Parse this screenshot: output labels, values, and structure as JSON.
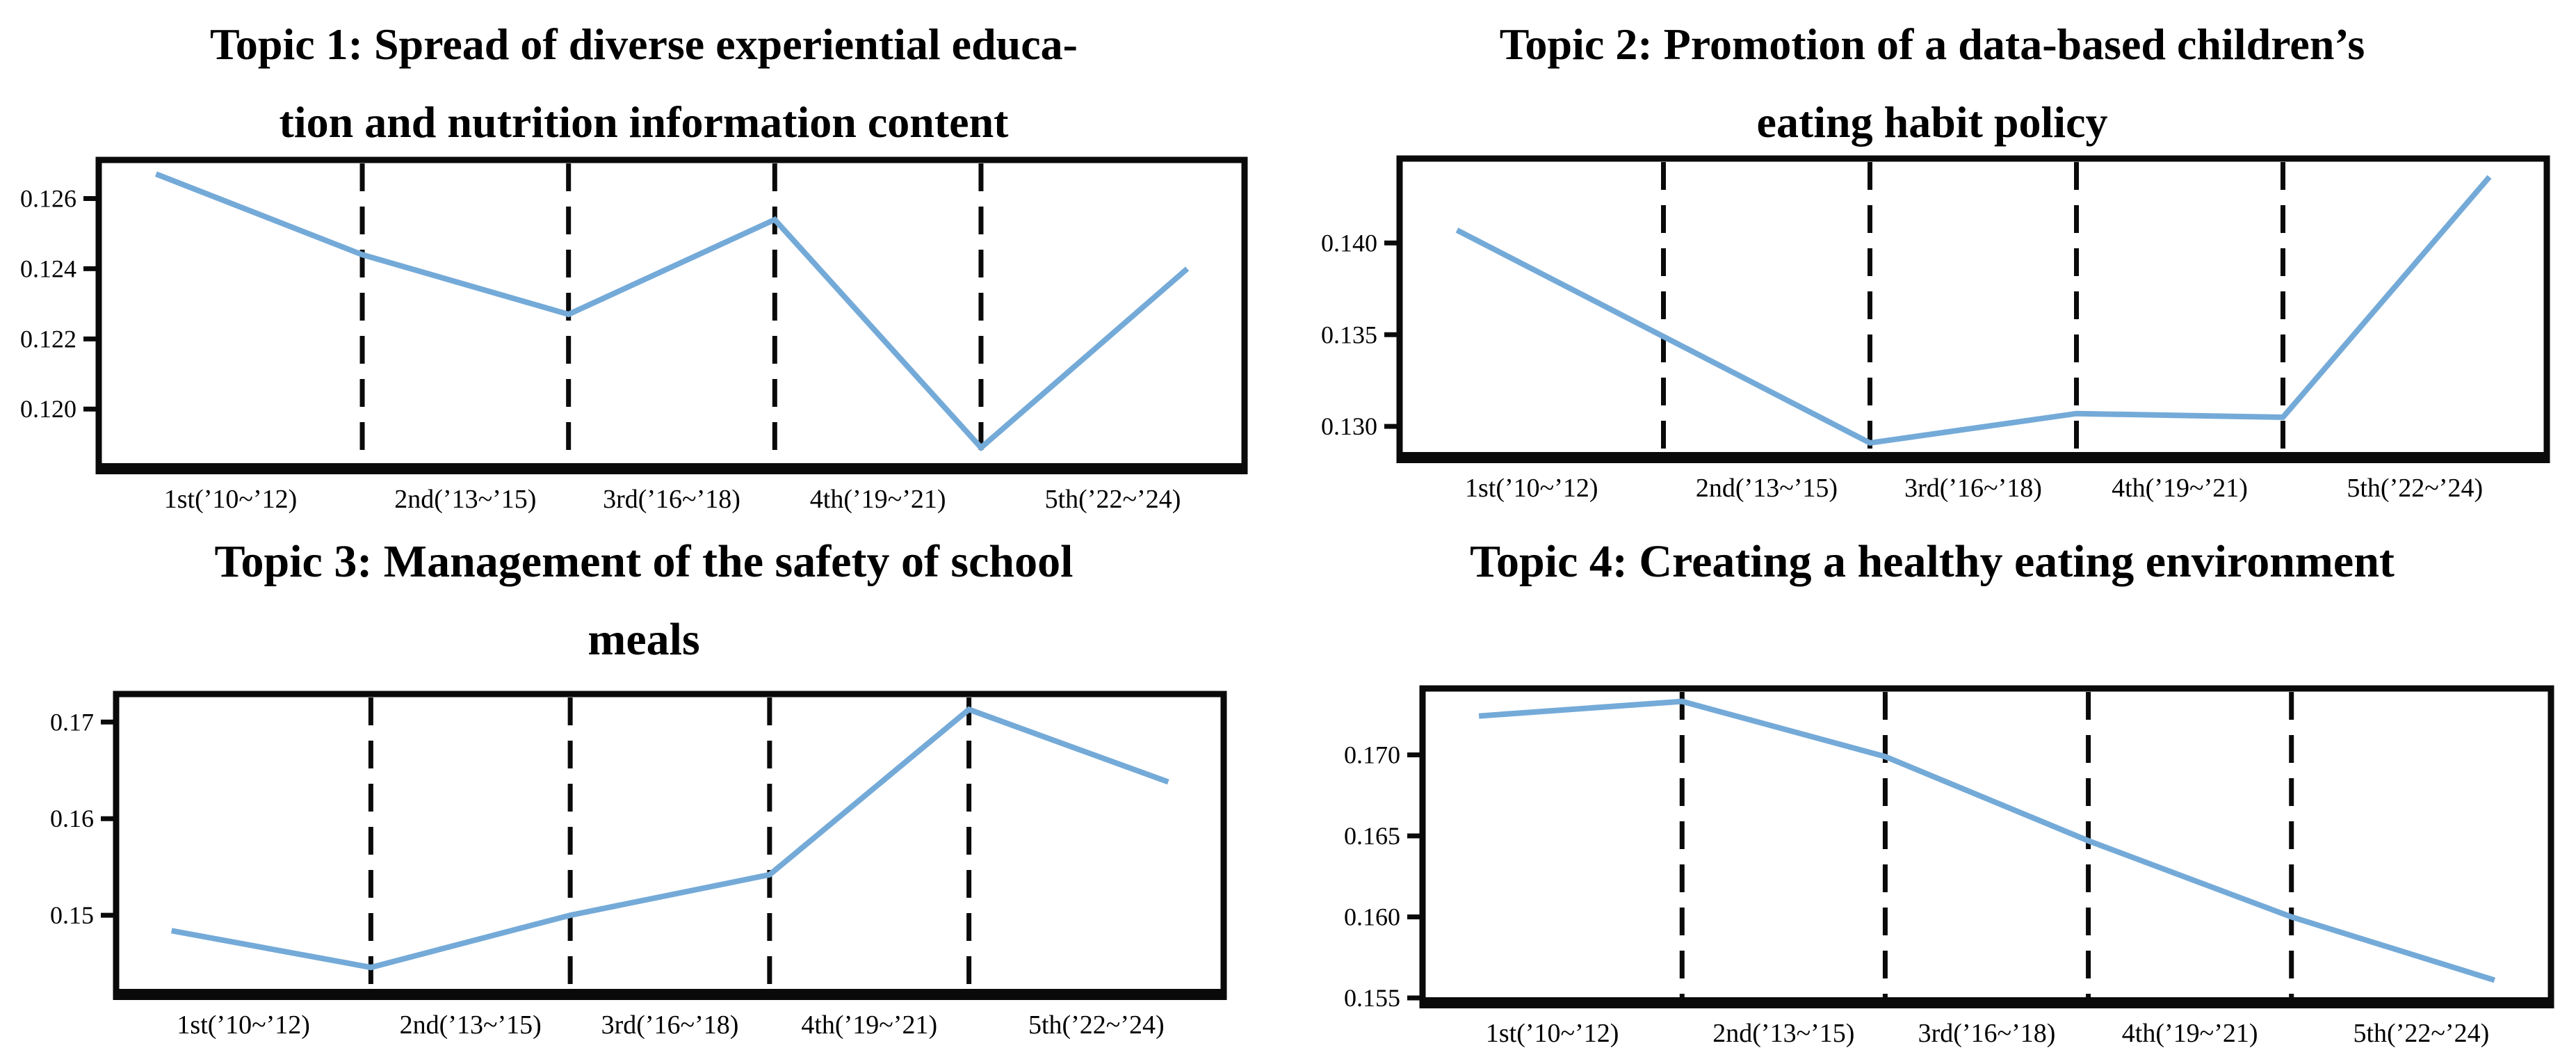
{
  "figure": {
    "background": "#ffffff",
    "line_color": "#74aad8",
    "frame_color": "#0a0a0a",
    "divider_color": "#0a0a0a",
    "text_color": "#000000"
  },
  "chart_data": [
    {
      "type": "line",
      "title_lines": [
        "Topic 1: Spread of diverse experiential educa-",
        "tion and nutrition information content"
      ],
      "x_labels": [
        "1st(’10~’12)",
        "2nd(’13~’15)",
        "3rd(’16~’18)",
        "4th(’19~’21)",
        "5th(’22~’24)"
      ],
      "values": [
        0.1267,
        0.1244,
        0.1227,
        0.1254,
        0.1189,
        0.124
      ],
      "y_ticks": [
        {
          "label": "0.126",
          "value": 0.126
        },
        {
          "label": "0.124",
          "value": 0.124
        },
        {
          "label": "0.122",
          "value": 0.122
        },
        {
          "label": "0.120",
          "value": 0.12
        }
      ],
      "ylim": [
        0.1183,
        0.1271
      ],
      "vertical_dividers_at_points": [
        1,
        2,
        3,
        4
      ],
      "legend": "none",
      "grid": "off"
    },
    {
      "type": "line",
      "title_lines": [
        "Topic 2: Promotion of a data-based children’s",
        "eating habit policy"
      ],
      "x_labels": [
        "1st(’10~’12)",
        "2nd(’13~’15)",
        "3rd(’16~’18)",
        "4th(’19~’21)",
        "5th(’22~’24)"
      ],
      "values": [
        0.1407,
        0.1349,
        0.1291,
        0.1307,
        0.1305,
        0.1436
      ],
      "y_ticks": [
        {
          "label": "0.140",
          "value": 0.14
        },
        {
          "label": "0.135",
          "value": 0.135
        },
        {
          "label": "0.130",
          "value": 0.13
        }
      ],
      "ylim": [
        0.1283,
        0.1446
      ],
      "vertical_dividers_at_points": [
        1,
        2,
        3,
        4
      ],
      "legend": "none",
      "grid": "off"
    },
    {
      "type": "line",
      "title_lines": [
        "Topic 3: Management of the safety of school",
        "meals"
      ],
      "x_labels": [
        "1st(’10~’12)",
        "2nd(’13~’15)",
        "3rd(’16~’18)",
        "4th(’19~’21)",
        "5th(’22~’24)"
      ],
      "values": [
        0.1484,
        0.1446,
        0.15,
        0.1542,
        0.1713,
        0.1638
      ],
      "y_ticks": [
        {
          "label": "0.17",
          "value": 0.17
        },
        {
          "label": "0.16",
          "value": 0.16
        },
        {
          "label": "0.15",
          "value": 0.15
        }
      ],
      "ylim": [
        0.1418,
        0.1729
      ],
      "vertical_dividers_at_points": [
        1,
        2,
        3,
        4
      ],
      "legend": "none",
      "grid": "off"
    },
    {
      "type": "line",
      "title_lines": [
        "Topic 4: Creating a healthy eating environment"
      ],
      "x_labels": [
        "1st(’10~’12)",
        "2nd(’13~’15)",
        "3rd(’16~’18)",
        "4th(’19~’21)",
        "5th(’22~’24)"
      ],
      "values": [
        0.1724,
        0.1733,
        0.1699,
        0.1647,
        0.16,
        0.1561
      ],
      "y_ticks": [
        {
          "label": "0.170",
          "value": 0.17
        },
        {
          "label": "0.165",
          "value": 0.165
        },
        {
          "label": "0.160",
          "value": 0.16
        },
        {
          "label": "0.155",
          "value": 0.155
        }
      ],
      "ylim": [
        0.1547,
        0.1741
      ],
      "vertical_dividers_at_points": [
        1,
        2,
        3,
        4
      ],
      "legend": "none",
      "grid": "off"
    }
  ]
}
